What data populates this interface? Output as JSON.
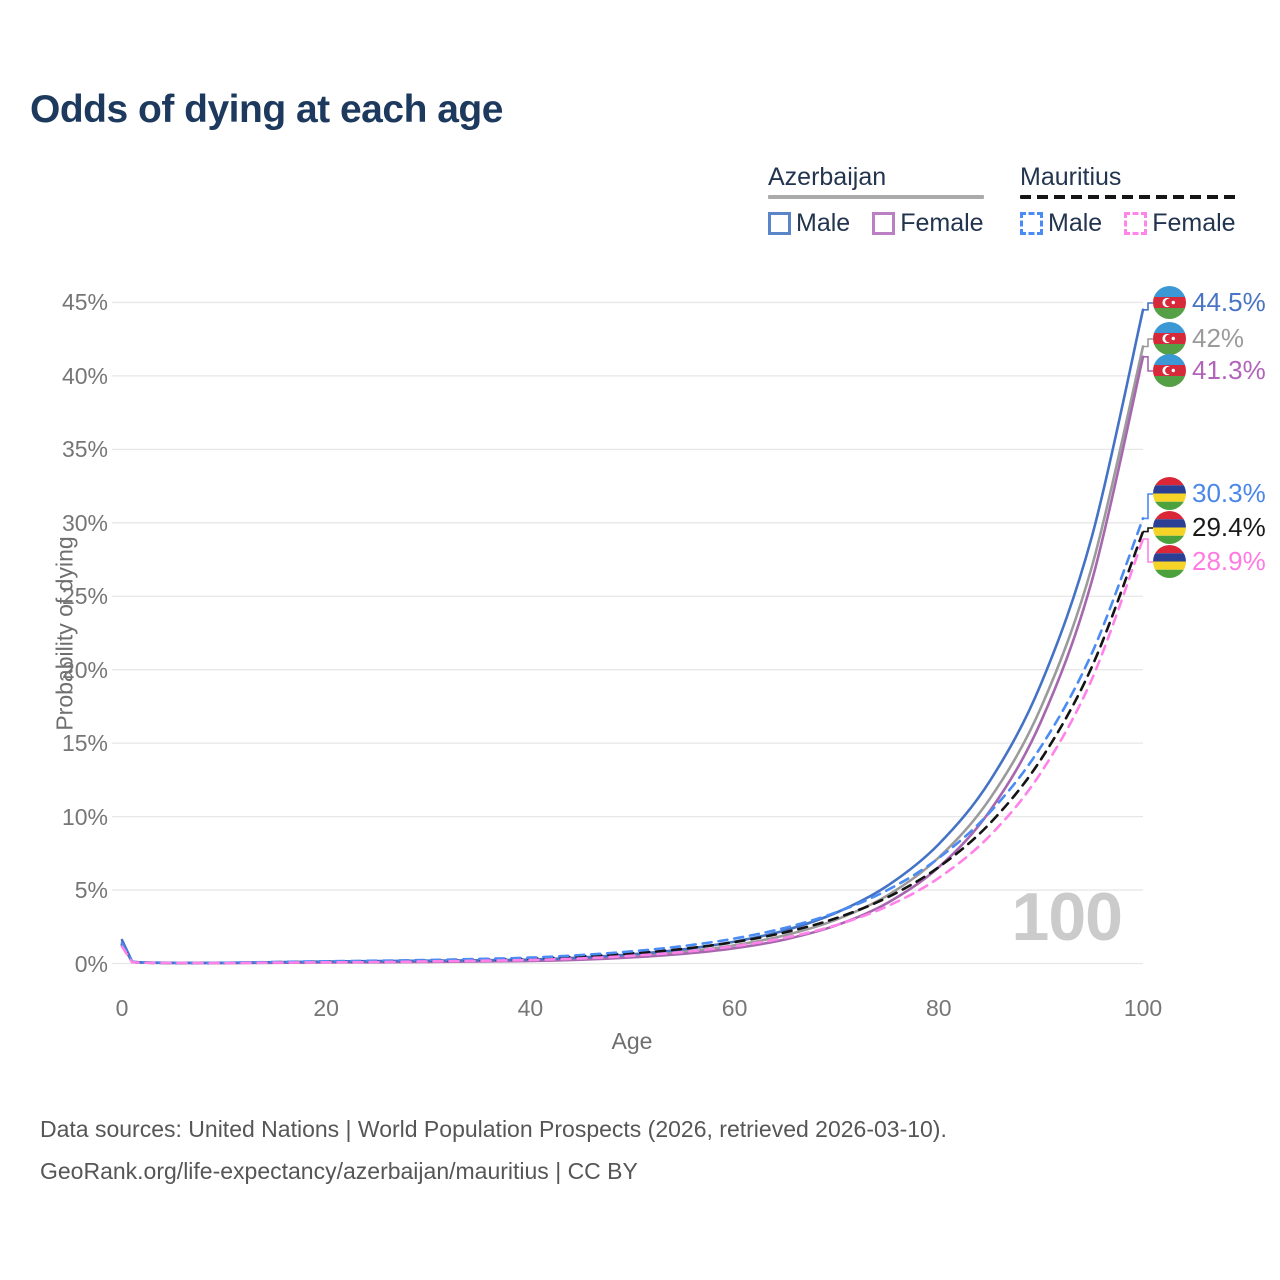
{
  "title": "Odds of dying at each age",
  "watermark_age": "100",
  "legend": {
    "groups": [
      {
        "name": "Azerbaijan",
        "line_style": "solid",
        "underline_color": "#ababab",
        "items": [
          {
            "label": "Male",
            "color": "#4473c6"
          },
          {
            "label": "Female",
            "color": "#a767ae"
          }
        ]
      },
      {
        "name": "Mauritius",
        "line_style": "dashed",
        "underline_color": "#151515",
        "items": [
          {
            "label": "Male",
            "color": "#4b8bf4"
          },
          {
            "label": "Female",
            "color": "#ff82e9"
          }
        ]
      }
    ]
  },
  "chart_data": {
    "type": "line",
    "title": "Odds of dying at each age",
    "xlabel": "Age",
    "ylabel": "Probability of dying",
    "x_ticks": [
      0,
      20,
      40,
      60,
      80,
      100
    ],
    "y_tick_labels": [
      "0%",
      "5%",
      "10%",
      "15%",
      "20%",
      "25%",
      "30%",
      "35%",
      "40%",
      "45%"
    ],
    "y_ticks_percent": [
      0,
      5,
      10,
      15,
      20,
      25,
      30,
      35,
      40,
      45
    ],
    "xlim": [
      0,
      100
    ],
    "ylim_percent": [
      0,
      45
    ],
    "grid": "horizontal-only",
    "age_indicator": "100",
    "ages": [
      0,
      1,
      5,
      10,
      15,
      20,
      25,
      30,
      35,
      40,
      45,
      50,
      55,
      60,
      65,
      70,
      75,
      80,
      85,
      90,
      95,
      100
    ],
    "series": [
      {
        "id": "az-both",
        "name": "Azerbaijan (both sexes)",
        "country": "Azerbaijan",
        "sex": "both",
        "line_color": "#9b9b9b",
        "line_style": "solid",
        "end_label": "42%",
        "end_label_color": "#9b9b9b",
        "flag": "azerbaijan",
        "values_percent": [
          1.45,
          0.11,
          0.04,
          0.04,
          0.07,
          0.1,
          0.12,
          0.15,
          0.18,
          0.21,
          0.33,
          0.52,
          0.8,
          1.24,
          1.93,
          3.0,
          4.65,
          7.22,
          11.22,
          17.42,
          27.04,
          42.0
        ]
      },
      {
        "id": "az-female",
        "name": "Azerbaijan Female",
        "country": "Azerbaijan",
        "sex": "female",
        "line_color": "#a767ae",
        "line_style": "solid",
        "end_label": "41.3%",
        "end_label_color": "#b064ba",
        "flag": "azerbaijan",
        "values_percent": [
          1.3,
          0.1,
          0.04,
          0.03,
          0.05,
          0.07,
          0.08,
          0.11,
          0.14,
          0.17,
          0.26,
          0.42,
          0.66,
          1.04,
          1.65,
          2.61,
          4.14,
          6.56,
          10.39,
          16.46,
          26.08,
          41.3
        ]
      },
      {
        "id": "az-male",
        "name": "Azerbaijan Male",
        "country": "Azerbaijan",
        "sex": "male",
        "line_color": "#4473c6",
        "line_style": "solid",
        "end_label": "44.5%",
        "end_label_color": "#4a74c4",
        "flag": "azerbaijan",
        "values_percent": [
          1.6,
          0.12,
          0.05,
          0.05,
          0.09,
          0.13,
          0.16,
          0.19,
          0.22,
          0.27,
          0.41,
          0.63,
          0.97,
          1.49,
          2.27,
          3.47,
          5.31,
          8.13,
          12.43,
          19.02,
          29.09,
          44.5
        ]
      },
      {
        "id": "mu-both",
        "name": "Mauritius (both sexes)",
        "country": "Mauritius",
        "sex": "both",
        "line_color": "#141414",
        "line_style": "dashed",
        "end_label": "29.4%",
        "end_label_color": "#1a1a1a",
        "flag": "mauritius",
        "values_percent": [
          1.25,
          0.1,
          0.04,
          0.04,
          0.08,
          0.12,
          0.15,
          0.19,
          0.25,
          0.33,
          0.48,
          0.69,
          1.0,
          1.46,
          2.13,
          3.1,
          4.51,
          6.56,
          9.54,
          13.89,
          20.21,
          29.4
        ]
      },
      {
        "id": "mu-male",
        "name": "Mauritius Male",
        "country": "Mauritius",
        "sex": "male",
        "line_color": "#4b8bf4",
        "line_style": "dashed",
        "end_label": "30.3%",
        "end_label_color": "#4b87e8",
        "flag": "mauritius",
        "values_percent": [
          1.35,
          0.11,
          0.05,
          0.05,
          0.1,
          0.15,
          0.19,
          0.24,
          0.31,
          0.4,
          0.58,
          0.83,
          1.19,
          1.7,
          2.44,
          3.49,
          5.01,
          7.18,
          10.29,
          14.75,
          21.14,
          30.3
        ]
      },
      {
        "id": "mu-female",
        "name": "Mauritius Female",
        "country": "Mauritius",
        "sex": "female",
        "line_color": "#ff82e9",
        "line_style": "dashed",
        "end_label": "28.9%",
        "end_label_color": "#ff7ae1",
        "flag": "mauritius",
        "values_percent": [
          1.15,
          0.09,
          0.04,
          0.03,
          0.06,
          0.08,
          0.1,
          0.14,
          0.19,
          0.24,
          0.35,
          0.53,
          0.79,
          1.18,
          1.76,
          2.62,
          3.91,
          5.83,
          8.7,
          12.99,
          19.37,
          28.9
        ]
      }
    ],
    "legend_position": "top-right",
    "end_label_order_top_to_bottom": [
      "44.5%",
      "42%",
      "41.3%",
      "30.3%",
      "29.4%",
      "28.9%"
    ]
  },
  "footer": {
    "line1": "Data sources: United Nations | World Population Prospects (2026, retrieved 2026-03-10).",
    "line2": "GeoRank.org/life-expectancy/azerbaijan/mauritius | CC BY"
  }
}
